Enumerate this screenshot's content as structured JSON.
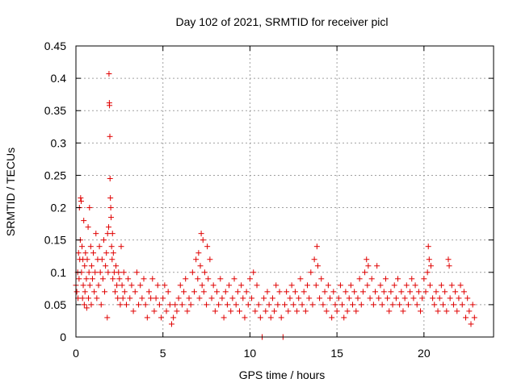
{
  "chart_data": {
    "type": "scatter",
    "title": "Day 102 of 2021, SRMTID for receiver picl",
    "xlabel": "GPS time / hours",
    "ylabel": "SRMTID / TECUs",
    "xlim": [
      0,
      24
    ],
    "ylim": [
      0,
      0.45
    ],
    "grid": true,
    "marker": "+",
    "colors": {
      "series": "#e00000",
      "grid": "#a0a0a0",
      "axis": "#000000"
    },
    "x_ticks": [
      {
        "value": 0,
        "label": "0"
      },
      {
        "value": 5,
        "label": "5"
      },
      {
        "value": 10,
        "label": "10"
      },
      {
        "value": 15,
        "label": "15"
      },
      {
        "value": 20,
        "label": "20"
      }
    ],
    "y_ticks": [
      {
        "value": 0,
        "label": "0"
      },
      {
        "value": 0.05,
        "label": "0.05"
      },
      {
        "value": 0.1,
        "label": "0.1"
      },
      {
        "value": 0.15,
        "label": "0.15"
      },
      {
        "value": 0.2,
        "label": "0.2"
      },
      {
        "value": 0.25,
        "label": "0.25"
      },
      {
        "value": 0.3,
        "label": "0.3"
      },
      {
        "value": 0.35,
        "label": "0.35"
      },
      {
        "value": 0.4,
        "label": "0.4"
      },
      {
        "value": 0.45,
        "label": "0.45"
      }
    ],
    "points": [
      [
        0.0,
        0.08
      ],
      [
        0.05,
        0.07
      ],
      [
        0.1,
        0.1
      ],
      [
        0.12,
        0.06
      ],
      [
        0.15,
        0.13
      ],
      [
        0.18,
        0.09
      ],
      [
        0.2,
        0.2
      ],
      [
        0.22,
        0.12
      ],
      [
        0.25,
        0.15
      ],
      [
        0.27,
        0.215
      ],
      [
        0.3,
        0.21
      ],
      [
        0.32,
        0.1
      ],
      [
        0.35,
        0.14
      ],
      [
        0.38,
        0.06
      ],
      [
        0.4,
        0.12
      ],
      [
        0.42,
        0.08
      ],
      [
        0.45,
        0.18
      ],
      [
        0.48,
        0.05
      ],
      [
        0.5,
        0.11
      ],
      [
        0.52,
        0.07
      ],
      [
        0.55,
        0.13
      ],
      [
        0.6,
        0.09
      ],
      [
        0.62,
        0.045
      ],
      [
        0.65,
        0.12
      ],
      [
        0.7,
        0.17
      ],
      [
        0.72,
        0.06
      ],
      [
        0.75,
        0.1
      ],
      [
        0.78,
        0.2
      ],
      [
        0.8,
        0.08
      ],
      [
        0.85,
        0.14
      ],
      [
        0.88,
        0.05
      ],
      [
        0.9,
        0.11
      ],
      [
        0.95,
        0.09
      ],
      [
        1.0,
        0.13
      ],
      [
        1.05,
        0.07
      ],
      [
        1.1,
        0.1
      ],
      [
        1.15,
        0.16
      ],
      [
        1.2,
        0.06
      ],
      [
        1.25,
        0.12
      ],
      [
        1.3,
        0.08
      ],
      [
        1.35,
        0.14
      ],
      [
        1.4,
        0.1
      ],
      [
        1.45,
        0.05
      ],
      [
        1.5,
        0.12
      ],
      [
        1.55,
        0.09
      ],
      [
        1.6,
        0.15
      ],
      [
        1.65,
        0.07
      ],
      [
        1.7,
        0.11
      ],
      [
        1.75,
        0.13
      ],
      [
        1.8,
        0.03
      ],
      [
        1.82,
        0.16
      ],
      [
        1.85,
        0.1
      ],
      [
        1.88,
        0.17
      ],
      [
        1.9,
        0.407
      ],
      [
        1.92,
        0.362
      ],
      [
        1.93,
        0.358
      ],
      [
        1.95,
        0.31
      ],
      [
        1.96,
        0.245
      ],
      [
        1.98,
        0.215
      ],
      [
        2.0,
        0.2
      ],
      [
        2.02,
        0.185
      ],
      [
        2.05,
        0.14
      ],
      [
        2.08,
        0.12
      ],
      [
        2.1,
        0.16
      ],
      [
        2.12,
        0.09
      ],
      [
        2.15,
        0.13
      ],
      [
        2.2,
        0.1
      ],
      [
        2.25,
        0.07
      ],
      [
        2.3,
        0.11
      ],
      [
        2.35,
        0.08
      ],
      [
        2.4,
        0.06
      ],
      [
        2.45,
        0.1
      ],
      [
        2.5,
        0.09
      ],
      [
        2.55,
        0.05
      ],
      [
        2.6,
        0.14
      ],
      [
        2.65,
        0.08
      ],
      [
        2.7,
        0.06
      ],
      [
        2.75,
        0.1
      ],
      [
        2.8,
        0.07
      ],
      [
        2.9,
        0.05
      ],
      [
        3.0,
        0.09
      ],
      [
        3.1,
        0.06
      ],
      [
        3.2,
        0.08
      ],
      [
        3.3,
        0.04
      ],
      [
        3.4,
        0.07
      ],
      [
        3.5,
        0.1
      ],
      [
        3.6,
        0.05
      ],
      [
        3.7,
        0.08
      ],
      [
        3.8,
        0.06
      ],
      [
        3.9,
        0.09
      ],
      [
        4.0,
        0.05
      ],
      [
        4.1,
        0.03
      ],
      [
        4.2,
        0.07
      ],
      [
        4.3,
        0.06
      ],
      [
        4.4,
        0.09
      ],
      [
        4.5,
        0.04
      ],
      [
        4.6,
        0.06
      ],
      [
        4.7,
        0.08
      ],
      [
        4.8,
        0.05
      ],
      [
        4.9,
        0.03
      ],
      [
        5.0,
        0.06
      ],
      [
        5.1,
        0.08
      ],
      [
        5.2,
        0.04
      ],
      [
        5.3,
        0.07
      ],
      [
        5.4,
        0.05
      ],
      [
        5.5,
        0.02
      ],
      [
        5.6,
        0.03
      ],
      [
        5.7,
        0.05
      ],
      [
        5.8,
        0.04
      ],
      [
        5.9,
        0.06
      ],
      [
        6.0,
        0.08
      ],
      [
        6.1,
        0.05
      ],
      [
        6.2,
        0.07
      ],
      [
        6.3,
        0.09
      ],
      [
        6.4,
        0.04
      ],
      [
        6.5,
        0.06
      ],
      [
        6.6,
        0.05
      ],
      [
        6.7,
        0.1
      ],
      [
        6.8,
        0.07
      ],
      [
        6.9,
        0.12
      ],
      [
        7.0,
        0.09
      ],
      [
        7.05,
        0.13
      ],
      [
        7.1,
        0.06
      ],
      [
        7.15,
        0.11
      ],
      [
        7.2,
        0.16
      ],
      [
        7.25,
        0.08
      ],
      [
        7.3,
        0.15
      ],
      [
        7.35,
        0.07
      ],
      [
        7.4,
        0.1
      ],
      [
        7.5,
        0.05
      ],
      [
        7.55,
        0.14
      ],
      [
        7.6,
        0.09
      ],
      [
        7.7,
        0.12
      ],
      [
        7.8,
        0.06
      ],
      [
        7.9,
        0.08
      ],
      [
        8.0,
        0.04
      ],
      [
        8.1,
        0.07
      ],
      [
        8.2,
        0.05
      ],
      [
        8.3,
        0.09
      ],
      [
        8.4,
        0.06
      ],
      [
        8.5,
        0.03
      ],
      [
        8.6,
        0.07
      ],
      [
        8.7,
        0.05
      ],
      [
        8.8,
        0.08
      ],
      [
        8.9,
        0.04
      ],
      [
        9.0,
        0.06
      ],
      [
        9.1,
        0.09
      ],
      [
        9.2,
        0.05
      ],
      [
        9.3,
        0.07
      ],
      [
        9.4,
        0.04
      ],
      [
        9.5,
        0.08
      ],
      [
        9.6,
        0.06
      ],
      [
        9.7,
        0.03
      ],
      [
        9.8,
        0.07
      ],
      [
        9.9,
        0.05
      ],
      [
        10.0,
        0.09
      ],
      [
        10.1,
        0.06
      ],
      [
        10.2,
        0.1
      ],
      [
        10.3,
        0.04
      ],
      [
        10.4,
        0.08
      ],
      [
        10.5,
        0.05
      ],
      [
        10.6,
        0.03
      ],
      [
        10.7,
        0.0
      ],
      [
        10.8,
        0.06
      ],
      [
        10.9,
        0.04
      ],
      [
        11.0,
        0.07
      ],
      [
        11.1,
        0.05
      ],
      [
        11.2,
        0.03
      ],
      [
        11.3,
        0.06
      ],
      [
        11.4,
        0.04
      ],
      [
        11.5,
        0.08
      ],
      [
        11.6,
        0.05
      ],
      [
        11.7,
        0.07
      ],
      [
        11.8,
        0.03
      ],
      [
        11.9,
        0.0
      ],
      [
        12.0,
        0.05
      ],
      [
        12.1,
        0.07
      ],
      [
        12.2,
        0.04
      ],
      [
        12.3,
        0.06
      ],
      [
        12.4,
        0.08
      ],
      [
        12.5,
        0.05
      ],
      [
        12.6,
        0.07
      ],
      [
        12.7,
        0.04
      ],
      [
        12.8,
        0.06
      ],
      [
        12.9,
        0.09
      ],
      [
        13.0,
        0.05
      ],
      [
        13.1,
        0.07
      ],
      [
        13.2,
        0.04
      ],
      [
        13.3,
        0.08
      ],
      [
        13.4,
        0.06
      ],
      [
        13.5,
        0.1
      ],
      [
        13.6,
        0.05
      ],
      [
        13.7,
        0.12
      ],
      [
        13.8,
        0.08
      ],
      [
        13.85,
        0.14
      ],
      [
        13.9,
        0.11
      ],
      [
        14.0,
        0.06
      ],
      [
        14.1,
        0.09
      ],
      [
        14.2,
        0.05
      ],
      [
        14.3,
        0.07
      ],
      [
        14.4,
        0.04
      ],
      [
        14.5,
        0.08
      ],
      [
        14.6,
        0.06
      ],
      [
        14.7,
        0.03
      ],
      [
        14.8,
        0.07
      ],
      [
        14.9,
        0.05
      ],
      [
        15.0,
        0.04
      ],
      [
        15.1,
        0.06
      ],
      [
        15.2,
        0.08
      ],
      [
        15.3,
        0.05
      ],
      [
        15.4,
        0.03
      ],
      [
        15.5,
        0.07
      ],
      [
        15.6,
        0.04
      ],
      [
        15.7,
        0.06
      ],
      [
        15.8,
        0.08
      ],
      [
        15.9,
        0.05
      ],
      [
        16.0,
        0.07
      ],
      [
        16.1,
        0.04
      ],
      [
        16.2,
        0.06
      ],
      [
        16.3,
        0.09
      ],
      [
        16.4,
        0.05
      ],
      [
        16.5,
        0.07
      ],
      [
        16.6,
        0.1
      ],
      [
        16.7,
        0.12
      ],
      [
        16.75,
        0.08
      ],
      [
        16.8,
        0.11
      ],
      [
        16.9,
        0.06
      ],
      [
        17.0,
        0.09
      ],
      [
        17.1,
        0.05
      ],
      [
        17.2,
        0.07
      ],
      [
        17.3,
        0.11
      ],
      [
        17.4,
        0.06
      ],
      [
        17.5,
        0.08
      ],
      [
        17.6,
        0.05
      ],
      [
        17.7,
        0.07
      ],
      [
        17.8,
        0.09
      ],
      [
        17.9,
        0.06
      ],
      [
        18.0,
        0.04
      ],
      [
        18.1,
        0.07
      ],
      [
        18.2,
        0.05
      ],
      [
        18.3,
        0.08
      ],
      [
        18.4,
        0.06
      ],
      [
        18.5,
        0.09
      ],
      [
        18.6,
        0.05
      ],
      [
        18.7,
        0.07
      ],
      [
        18.8,
        0.04
      ],
      [
        18.9,
        0.06
      ],
      [
        19.0,
        0.08
      ],
      [
        19.1,
        0.05
      ],
      [
        19.2,
        0.07
      ],
      [
        19.3,
        0.09
      ],
      [
        19.4,
        0.06
      ],
      [
        19.5,
        0.08
      ],
      [
        19.6,
        0.05
      ],
      [
        19.7,
        0.07
      ],
      [
        19.8,
        0.04
      ],
      [
        19.9,
        0.06
      ],
      [
        20.0,
        0.09
      ],
      [
        20.1,
        0.07
      ],
      [
        20.2,
        0.1
      ],
      [
        20.25,
        0.14
      ],
      [
        20.3,
        0.12
      ],
      [
        20.35,
        0.08
      ],
      [
        20.4,
        0.11
      ],
      [
        20.5,
        0.06
      ],
      [
        20.6,
        0.05
      ],
      [
        20.7,
        0.07
      ],
      [
        20.8,
        0.04
      ],
      [
        20.9,
        0.06
      ],
      [
        21.0,
        0.08
      ],
      [
        21.1,
        0.05
      ],
      [
        21.2,
        0.07
      ],
      [
        21.3,
        0.04
      ],
      [
        21.4,
        0.12
      ],
      [
        21.45,
        0.11
      ],
      [
        21.5,
        0.06
      ],
      [
        21.6,
        0.08
      ],
      [
        21.7,
        0.05
      ],
      [
        21.8,
        0.07
      ],
      [
        21.9,
        0.04
      ],
      [
        22.0,
        0.06
      ],
      [
        22.1,
        0.08
      ],
      [
        22.2,
        0.05
      ],
      [
        22.3,
        0.07
      ],
      [
        22.4,
        0.03
      ],
      [
        22.5,
        0.06
      ],
      [
        22.6,
        0.04
      ],
      [
        22.7,
        0.02
      ],
      [
        22.8,
        0.05
      ],
      [
        22.9,
        0.03
      ]
    ]
  }
}
